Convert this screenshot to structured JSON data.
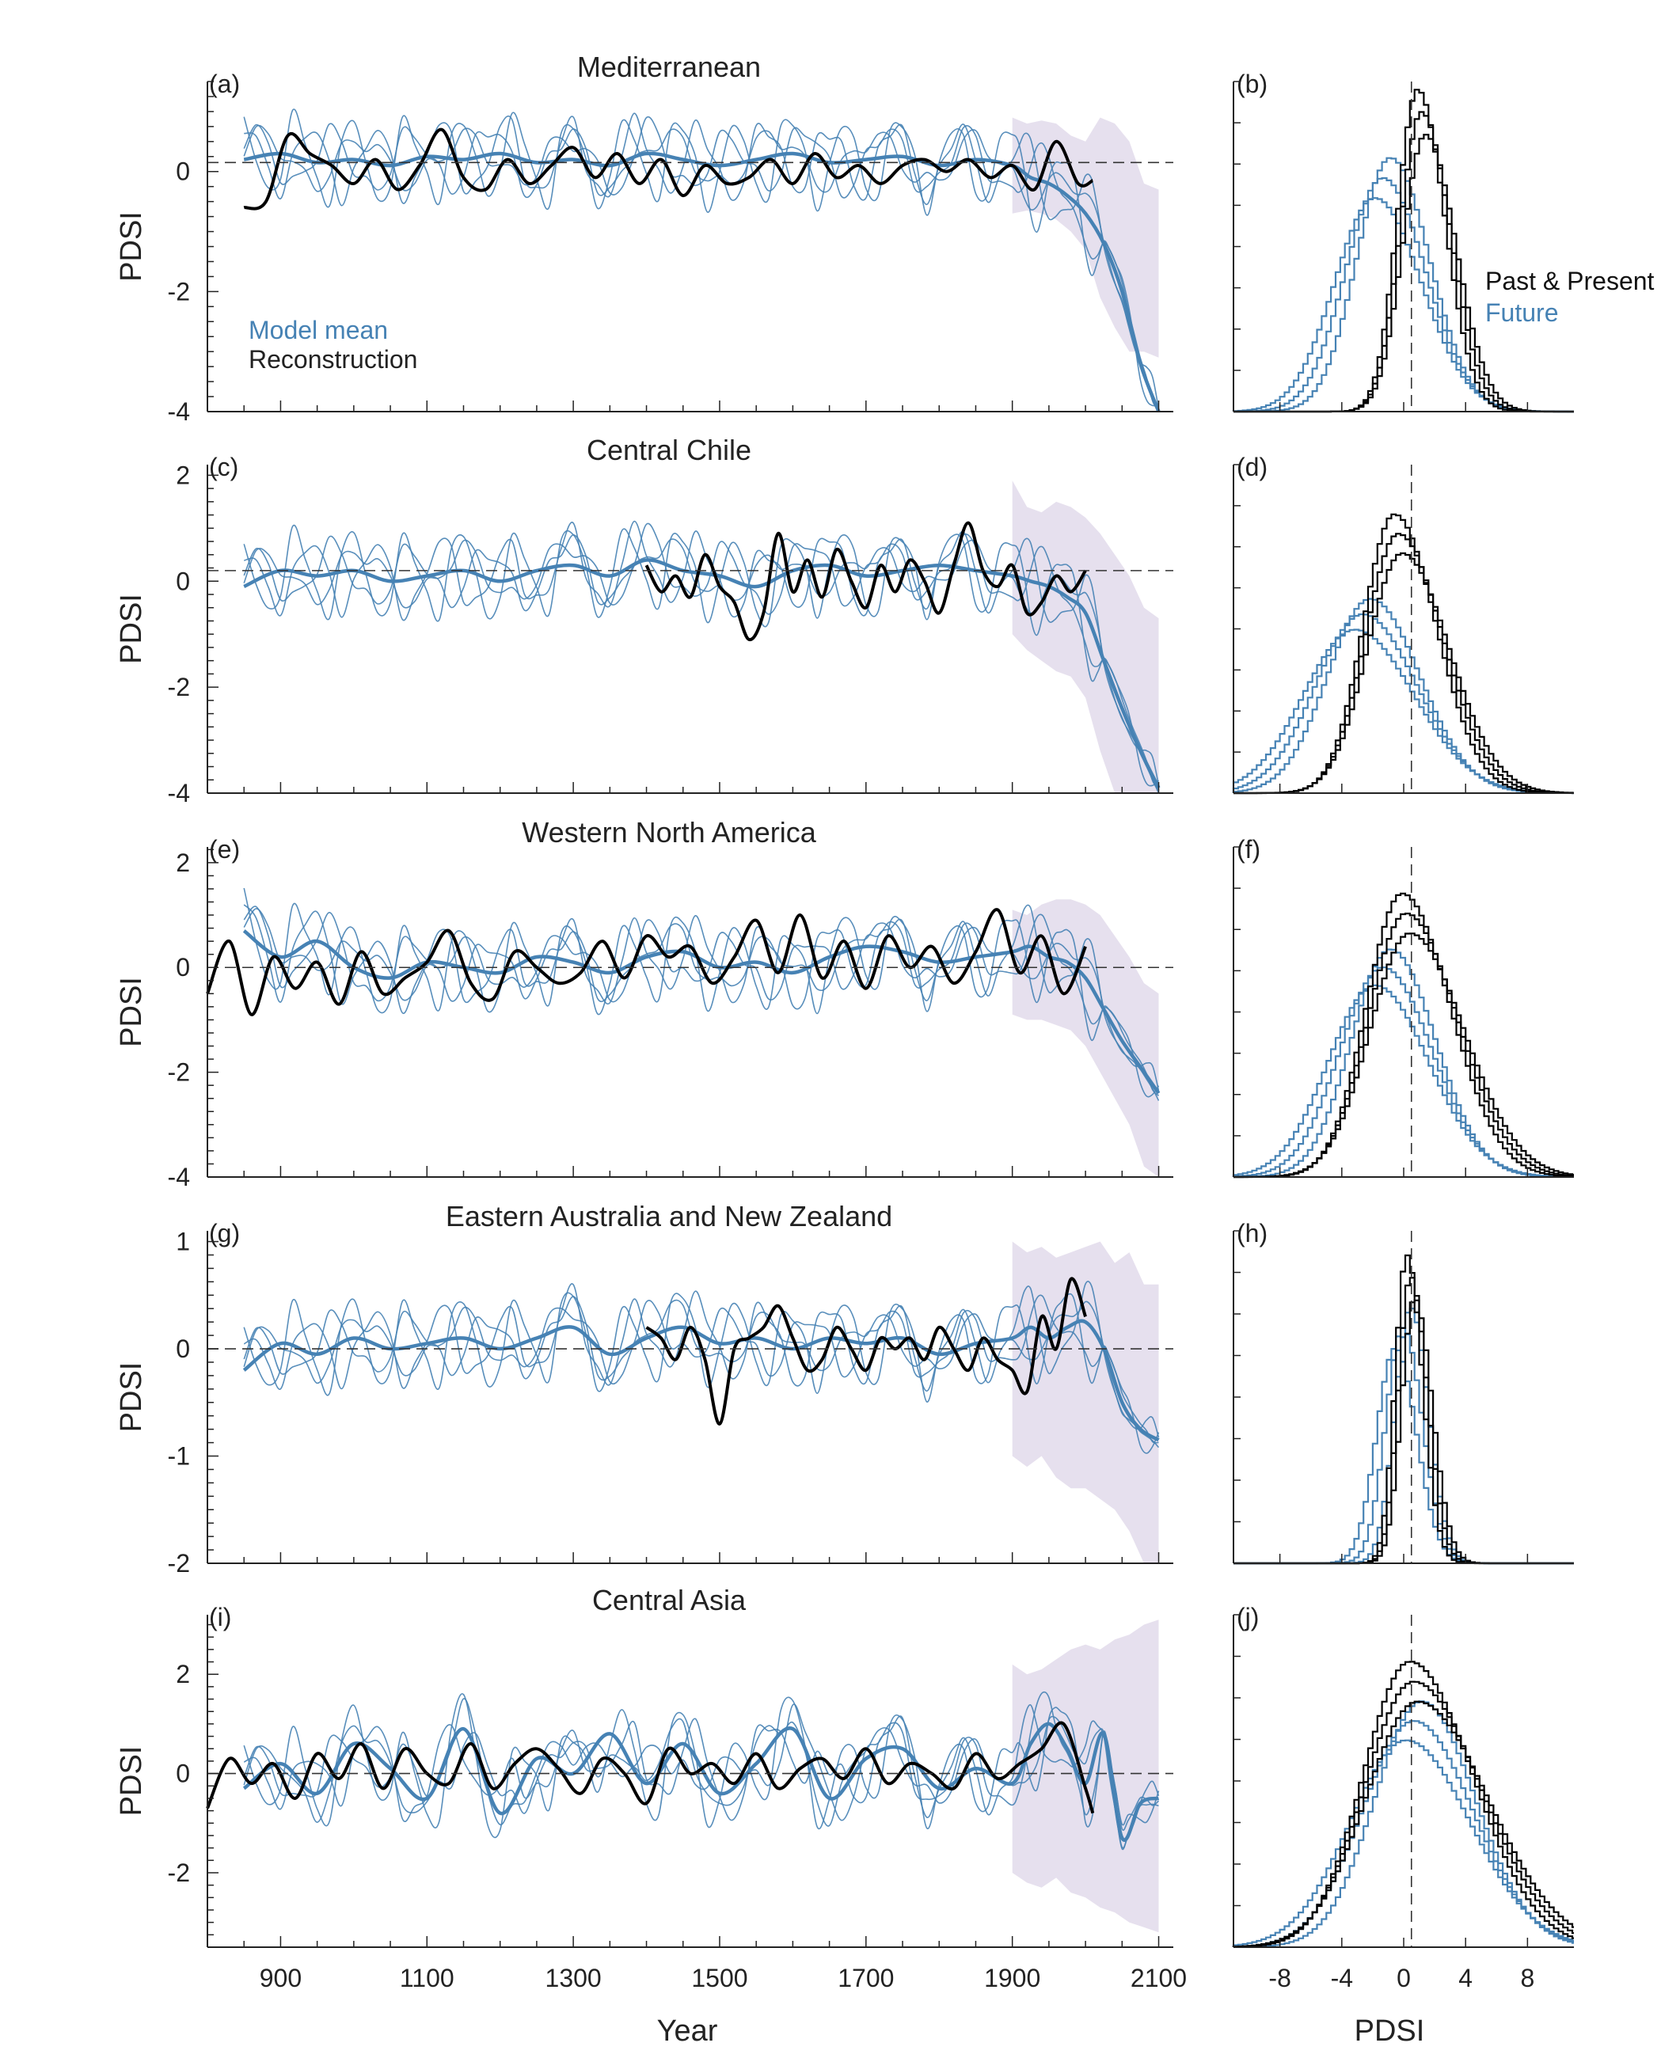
{
  "colors": {
    "model": "#4682b4",
    "reconstruction": "#000000",
    "spread": "#e6e0ee",
    "axis": "#222222"
  },
  "legend": {
    "model_label": "Model mean",
    "recon_label": "Reconstruction",
    "past_label": "Past & Present",
    "future_label": "Future"
  },
  "time_xaxis": {
    "label": "Year",
    "xlim": [
      800,
      2120
    ],
    "ticks": [
      900,
      1100,
      1300,
      1500,
      1700,
      1900,
      2100
    ]
  },
  "hist_xaxis": {
    "label": "PDSI",
    "xlim": [
      -11,
      11
    ],
    "ticks": [
      -8,
      -4,
      0,
      4,
      8
    ]
  },
  "chart_data": [
    {
      "type": "line",
      "panel": "(a)",
      "title": "Mediterranean",
      "ylabel": "PDSI",
      "ylim": [
        -4,
        1.5
      ],
      "yticks": [
        0,
        -2,
        -4
      ],
      "reference_line": 0.15,
      "spread_band": {
        "x": [
          1900,
          1920,
          1940,
          1960,
          1980,
          2000,
          2020,
          2040,
          2060,
          2080,
          2100
        ],
        "upper": [
          0.9,
          0.8,
          0.85,
          0.8,
          0.6,
          0.5,
          0.9,
          0.8,
          0.5,
          -0.2,
          -0.3
        ],
        "lower": [
          -0.7,
          -0.65,
          -0.7,
          -0.8,
          -1.0,
          -1.3,
          -2.1,
          -2.6,
          -3.0,
          -3.0,
          -3.1
        ]
      },
      "model_mean": {
        "x": [
          850,
          900,
          950,
          1000,
          1050,
          1100,
          1150,
          1200,
          1250,
          1300,
          1350,
          1400,
          1450,
          1500,
          1550,
          1600,
          1650,
          1700,
          1750,
          1800,
          1850,
          1900,
          1925,
          1950,
          1975,
          2000,
          2025,
          2050,
          2075,
          2100
        ],
        "y": [
          0.2,
          0.3,
          0.15,
          0.2,
          0.1,
          0.25,
          0.2,
          0.3,
          0.15,
          0.2,
          0.1,
          0.3,
          0.2,
          0.1,
          0.2,
          0.3,
          0.15,
          0.2,
          0.25,
          0.1,
          0.2,
          0.1,
          -0.1,
          -0.2,
          -0.4,
          -0.7,
          -1.2,
          -2.0,
          -3.2,
          -4.0
        ]
      },
      "reconstruction": {
        "x": [
          850,
          880,
          910,
          940,
          970,
          1000,
          1030,
          1060,
          1090,
          1120,
          1150,
          1180,
          1210,
          1240,
          1270,
          1300,
          1330,
          1360,
          1390,
          1420,
          1450,
          1480,
          1510,
          1540,
          1570,
          1600,
          1630,
          1660,
          1690,
          1720,
          1750,
          1780,
          1810,
          1840,
          1870,
          1900,
          1930,
          1960,
          1990,
          2010
        ],
        "y": [
          -0.6,
          -0.5,
          0.6,
          0.3,
          0.1,
          -0.2,
          0.2,
          -0.3,
          0.1,
          0.7,
          -0.1,
          -0.3,
          0.2,
          -0.2,
          0.1,
          0.4,
          -0.1,
          0.3,
          -0.2,
          0.2,
          -0.4,
          0.1,
          -0.2,
          -0.1,
          0.2,
          -0.2,
          0.3,
          -0.1,
          0.1,
          -0.2,
          0.1,
          0.2,
          0.0,
          0.2,
          -0.1,
          0.1,
          -0.3,
          0.5,
          -0.2,
          -0.15
        ]
      },
      "histogram": {
        "past_mean": 1.0,
        "past_sd": 1.3,
        "past_peak": 1.0,
        "future_mean": -1.5,
        "future_sd": 2.6,
        "future_peak": 0.78
      }
    },
    {
      "type": "line",
      "panel": "(c)",
      "title": "Central Chile",
      "ylabel": "PDSI",
      "ylim": [
        -4,
        2.2
      ],
      "yticks": [
        2,
        0,
        -2,
        -4
      ],
      "reference_line": 0.2,
      "spread_band": {
        "x": [
          1900,
          1920,
          1940,
          1960,
          1980,
          2000,
          2020,
          2040,
          2060,
          2080,
          2100
        ],
        "upper": [
          1.9,
          1.4,
          1.3,
          1.5,
          1.4,
          1.2,
          0.9,
          0.5,
          0.1,
          -0.5,
          -0.7
        ],
        "lower": [
          -1.0,
          -1.3,
          -1.5,
          -1.7,
          -1.8,
          -2.2,
          -3.2,
          -4.0,
          -4.0,
          -4.0,
          -4.0
        ]
      },
      "model_mean": {
        "x": [
          850,
          900,
          950,
          1000,
          1050,
          1100,
          1150,
          1200,
          1250,
          1300,
          1350,
          1400,
          1450,
          1500,
          1550,
          1600,
          1650,
          1700,
          1750,
          1800,
          1850,
          1900,
          1925,
          1950,
          1975,
          2000,
          2025,
          2050,
          2075,
          2100
        ],
        "y": [
          -0.1,
          0.2,
          0.1,
          0.2,
          0.0,
          0.1,
          0.2,
          0.0,
          0.2,
          0.3,
          0.1,
          0.4,
          0.2,
          0.1,
          -0.1,
          0.2,
          0.3,
          0.1,
          0.2,
          0.3,
          0.2,
          0.1,
          0.0,
          -0.1,
          -0.3,
          -0.6,
          -1.5,
          -2.4,
          -3.2,
          -3.9
        ]
      },
      "reconstruction": {
        "x": [
          1400,
          1420,
          1440,
          1460,
          1480,
          1500,
          1520,
          1540,
          1560,
          1580,
          1600,
          1620,
          1640,
          1660,
          1680,
          1700,
          1720,
          1740,
          1760,
          1780,
          1800,
          1820,
          1840,
          1860,
          1880,
          1900,
          1920,
          1940,
          1960,
          1980,
          2000
        ],
        "y": [
          0.3,
          -0.2,
          0.1,
          -0.3,
          0.5,
          -0.1,
          -0.4,
          -1.1,
          -0.6,
          0.9,
          -0.2,
          0.4,
          -0.3,
          0.6,
          0.0,
          -0.5,
          0.3,
          -0.2,
          0.4,
          0.0,
          -0.6,
          0.3,
          1.1,
          0.2,
          -0.1,
          0.3,
          -0.6,
          -0.4,
          0.1,
          -0.2,
          0.2
        ]
      },
      "histogram": {
        "past_mean": -0.5,
        "past_sd": 2.0,
        "past_peak": 0.87,
        "future_mean": -2.8,
        "future_sd": 3.3,
        "future_peak": 0.6
      }
    },
    {
      "type": "line",
      "panel": "(e)",
      "title": "Western North America",
      "ylabel": "PDSI",
      "ylim": [
        -4,
        2.3
      ],
      "yticks": [
        2,
        0,
        -2,
        -4
      ],
      "reference_line": 0.0,
      "spread_band": {
        "x": [
          1900,
          1920,
          1940,
          1960,
          1980,
          2000,
          2020,
          2040,
          2060,
          2080,
          2100
        ],
        "upper": [
          1.1,
          1.0,
          1.2,
          1.3,
          1.3,
          1.2,
          1.0,
          0.6,
          0.2,
          -0.3,
          -0.5
        ],
        "lower": [
          -0.9,
          -1.0,
          -1.0,
          -1.1,
          -1.2,
          -1.5,
          -2.0,
          -2.5,
          -3.0,
          -3.8,
          -4.0
        ]
      },
      "model_mean": {
        "x": [
          850,
          900,
          950,
          1000,
          1050,
          1100,
          1150,
          1200,
          1250,
          1300,
          1350,
          1400,
          1450,
          1500,
          1550,
          1600,
          1650,
          1700,
          1750,
          1800,
          1850,
          1900,
          1925,
          1950,
          1975,
          2000,
          2025,
          2050,
          2075,
          2100
        ],
        "y": [
          0.7,
          0.2,
          0.5,
          0.0,
          -0.2,
          0.1,
          0.0,
          -0.1,
          0.2,
          0.1,
          -0.1,
          0.2,
          0.3,
          0.0,
          0.1,
          -0.1,
          0.2,
          0.4,
          0.3,
          0.1,
          0.2,
          0.3,
          0.4,
          0.2,
          0.1,
          -0.2,
          -0.8,
          -1.4,
          -1.9,
          -2.4
        ]
      },
      "reconstruction": {
        "x": [
          800,
          830,
          860,
          890,
          920,
          950,
          980,
          1010,
          1040,
          1070,
          1100,
          1130,
          1160,
          1190,
          1220,
          1250,
          1280,
          1310,
          1340,
          1370,
          1400,
          1430,
          1460,
          1490,
          1520,
          1550,
          1580,
          1610,
          1640,
          1670,
          1700,
          1730,
          1760,
          1790,
          1820,
          1850,
          1880,
          1910,
          1940,
          1970,
          2000
        ],
        "y": [
          -0.5,
          0.5,
          -0.9,
          0.2,
          -0.4,
          0.1,
          -0.7,
          0.3,
          -0.5,
          -0.2,
          0.1,
          0.7,
          -0.3,
          -0.6,
          0.3,
          0.0,
          -0.3,
          -0.1,
          0.5,
          -0.2,
          0.6,
          0.2,
          0.4,
          -0.3,
          0.2,
          0.9,
          -0.1,
          1.0,
          -0.2,
          0.5,
          -0.4,
          0.6,
          0.0,
          0.4,
          -0.3,
          0.3,
          1.1,
          -0.1,
          0.6,
          -0.5,
          0.4
        ]
      },
      "histogram": {
        "past_mean": 0.0,
        "past_sd": 2.3,
        "past_peak": 0.88,
        "future_mean": -1.5,
        "future_sd": 3.0,
        "future_peak": 0.7
      }
    },
    {
      "type": "line",
      "panel": "(g)",
      "title": "Eastern Australia and New Zealand",
      "ylabel": "PDSI",
      "ylim": [
        -2,
        1.1
      ],
      "yticks": [
        1,
        0,
        -1,
        -2
      ],
      "reference_line": 0.0,
      "spread_band": {
        "x": [
          1900,
          1920,
          1940,
          1960,
          1980,
          2000,
          2020,
          2040,
          2060,
          2080,
          2100
        ],
        "upper": [
          1.0,
          0.9,
          0.95,
          0.85,
          0.9,
          0.95,
          1.0,
          0.8,
          0.9,
          0.6,
          0.6
        ],
        "lower": [
          -1.0,
          -1.1,
          -1.0,
          -1.2,
          -1.3,
          -1.3,
          -1.4,
          -1.5,
          -1.7,
          -2.0,
          -2.0
        ]
      },
      "model_mean": {
        "x": [
          850,
          900,
          950,
          1000,
          1050,
          1100,
          1150,
          1200,
          1250,
          1300,
          1350,
          1400,
          1450,
          1500,
          1550,
          1600,
          1650,
          1700,
          1750,
          1800,
          1850,
          1900,
          1925,
          1950,
          1975,
          2000,
          2025,
          2050,
          2075,
          2100
        ],
        "y": [
          -0.2,
          0.05,
          -0.05,
          0.1,
          0.0,
          0.05,
          0.1,
          0.0,
          0.1,
          0.2,
          -0.05,
          0.1,
          0.2,
          0.05,
          0.1,
          0.0,
          0.1,
          0.05,
          0.1,
          -0.05,
          0.05,
          0.1,
          0.2,
          0.1,
          0.2,
          0.25,
          0.0,
          -0.5,
          -0.75,
          -0.85
        ]
      },
      "reconstruction": {
        "x": [
          1400,
          1420,
          1440,
          1460,
          1480,
          1500,
          1520,
          1540,
          1560,
          1580,
          1600,
          1620,
          1640,
          1660,
          1680,
          1700,
          1720,
          1740,
          1760,
          1780,
          1800,
          1820,
          1840,
          1860,
          1880,
          1900,
          1920,
          1940,
          1960,
          1980,
          2000
        ],
        "y": [
          0.2,
          0.1,
          -0.1,
          0.2,
          -0.1,
          -0.7,
          0.0,
          0.1,
          0.2,
          0.4,
          0.1,
          -0.2,
          -0.1,
          0.2,
          0.0,
          -0.2,
          0.1,
          0.0,
          0.1,
          -0.1,
          0.2,
          0.0,
          -0.2,
          0.1,
          -0.1,
          -0.2,
          -0.4,
          0.3,
          0.0,
          0.65,
          0.3
        ]
      },
      "histogram": {
        "past_mean": 0.3,
        "past_sd": 0.75,
        "past_peak": 0.95,
        "future_mean": -0.2,
        "future_sd": 1.2,
        "future_peak": 0.78
      }
    },
    {
      "type": "line",
      "panel": "(i)",
      "title": "Central Asia",
      "ylabel": "PDSI",
      "ylim": [
        -3.5,
        3.2
      ],
      "yticks": [
        2,
        0,
        -2
      ],
      "reference_line": 0.0,
      "spread_band": {
        "x": [
          1900,
          1920,
          1940,
          1960,
          1980,
          2000,
          2020,
          2040,
          2060,
          2080,
          2100
        ],
        "upper": [
          2.2,
          2.0,
          2.1,
          2.3,
          2.5,
          2.6,
          2.5,
          2.7,
          2.8,
          3.0,
          3.1
        ],
        "lower": [
          -2.0,
          -2.2,
          -2.3,
          -2.1,
          -2.4,
          -2.5,
          -2.7,
          -2.8,
          -3.0,
          -3.1,
          -3.2
        ]
      },
      "model_mean": {
        "x": [
          850,
          900,
          950,
          1000,
          1050,
          1100,
          1150,
          1200,
          1250,
          1300,
          1350,
          1400,
          1450,
          1500,
          1550,
          1600,
          1650,
          1700,
          1750,
          1800,
          1850,
          1900,
          1925,
          1950,
          1975,
          2000,
          2025,
          2050,
          2075,
          2100
        ],
        "y": [
          -0.3,
          0.2,
          -0.4,
          0.6,
          0.1,
          -0.5,
          0.9,
          -0.8,
          0.3,
          0.0,
          0.8,
          -0.2,
          0.6,
          -0.4,
          0.2,
          0.9,
          -0.5,
          0.3,
          0.5,
          -0.3,
          0.1,
          -0.2,
          0.6,
          1.0,
          0.5,
          -0.2,
          0.8,
          -1.3,
          -0.6,
          -0.5
        ]
      },
      "reconstruction": {
        "x": [
          800,
          830,
          860,
          890,
          920,
          950,
          980,
          1010,
          1040,
          1070,
          1100,
          1130,
          1160,
          1190,
          1220,
          1250,
          1280,
          1310,
          1340,
          1370,
          1400,
          1430,
          1460,
          1490,
          1520,
          1550,
          1580,
          1610,
          1640,
          1670,
          1700,
          1730,
          1760,
          1790,
          1820,
          1850,
          1880,
          1910,
          1940,
          1970,
          2000,
          2010
        ],
        "y": [
          -0.7,
          0.3,
          -0.2,
          0.2,
          -0.5,
          0.4,
          -0.1,
          0.6,
          -0.3,
          0.5,
          0.0,
          -0.2,
          0.6,
          -0.3,
          0.2,
          0.5,
          0.1,
          -0.4,
          0.3,
          0.0,
          -0.6,
          0.5,
          0.0,
          0.2,
          -0.2,
          0.4,
          -0.3,
          0.1,
          0.3,
          -0.1,
          0.5,
          -0.2,
          0.2,
          0.0,
          -0.3,
          0.4,
          -0.1,
          0.2,
          0.5,
          1.0,
          -0.3,
          -0.8
        ]
      },
      "histogram": {
        "past_mean": 0.5,
        "past_sd": 3.0,
        "past_peak": 0.88,
        "future_mean": 0.5,
        "future_sd": 3.6,
        "future_peak": 0.75
      }
    }
  ],
  "hist_panels": [
    "(b)",
    "(d)",
    "(f)",
    "(h)",
    "(j)"
  ]
}
